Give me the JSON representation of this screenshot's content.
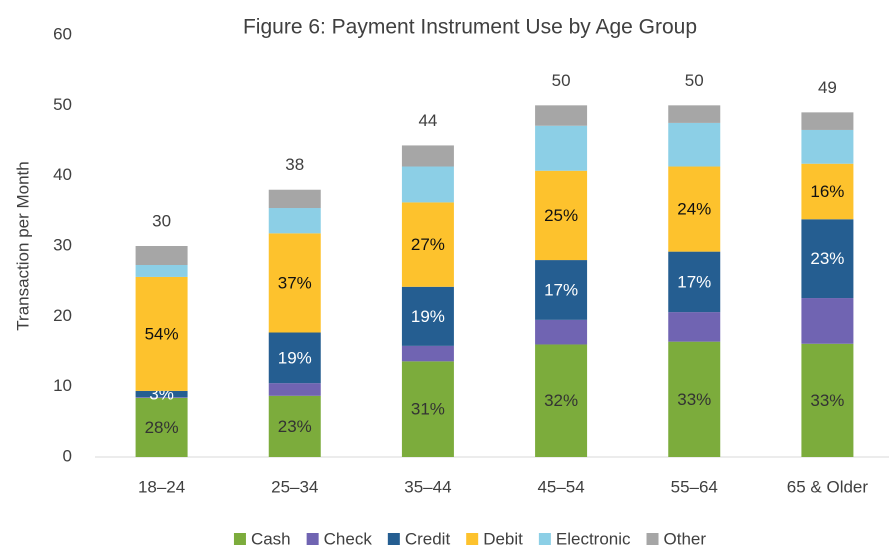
{
  "chart_data": {
    "type": "stacked_bar",
    "title": "Figure 6: Payment Instrument Use by Age Group",
    "y_label": "Transaction per Month",
    "categories": [
      "18–24",
      "25–34",
      "35–44",
      "45–54",
      "55–64",
      "65 & Older"
    ],
    "ylim": [
      0,
      60
    ],
    "yticks": [
      0,
      10,
      20,
      30,
      40,
      50,
      60
    ],
    "grid": false,
    "legend": "bottom",
    "totals": [
      30,
      38,
      44,
      50,
      50,
      49
    ],
    "series": [
      {
        "name": "Cash",
        "color": "#7cac3c",
        "label_color": "#333333",
        "values": [
          8.4,
          8.7,
          13.6,
          16.0,
          16.4,
          16.1
        ],
        "value_labels": [
          "28%",
          "23%",
          "31%",
          "32%",
          "33%",
          "33%"
        ]
      },
      {
        "name": "Check",
        "color": "#7064b2",
        "values": [
          0.1,
          1.8,
          2.2,
          3.5,
          4.2,
          6.5
        ]
      },
      {
        "name": "Credit",
        "color": "#255e91",
        "label_color": "#ffffff",
        "values": [
          0.9,
          7.2,
          8.4,
          8.5,
          8.6,
          11.2
        ],
        "value_labels": [
          "3%",
          "19%",
          "19%",
          "17%",
          "17%",
          "23%"
        ]
      },
      {
        "name": "Debit",
        "color": "#fdc22d",
        "label_color": "#111111",
        "values": [
          16.2,
          14.1,
          12.0,
          12.7,
          12.1,
          7.9
        ],
        "value_labels": [
          "54%",
          "37%",
          "27%",
          "25%",
          "24%",
          "16%"
        ]
      },
      {
        "name": "Electronic",
        "color": "#8ccfe6",
        "values": [
          1.7,
          3.6,
          5.1,
          6.4,
          6.2,
          4.8
        ]
      },
      {
        "name": "Other",
        "color": "#a6a6a6",
        "values": [
          2.7,
          2.6,
          3.0,
          2.9,
          2.5,
          2.5
        ]
      }
    ]
  }
}
